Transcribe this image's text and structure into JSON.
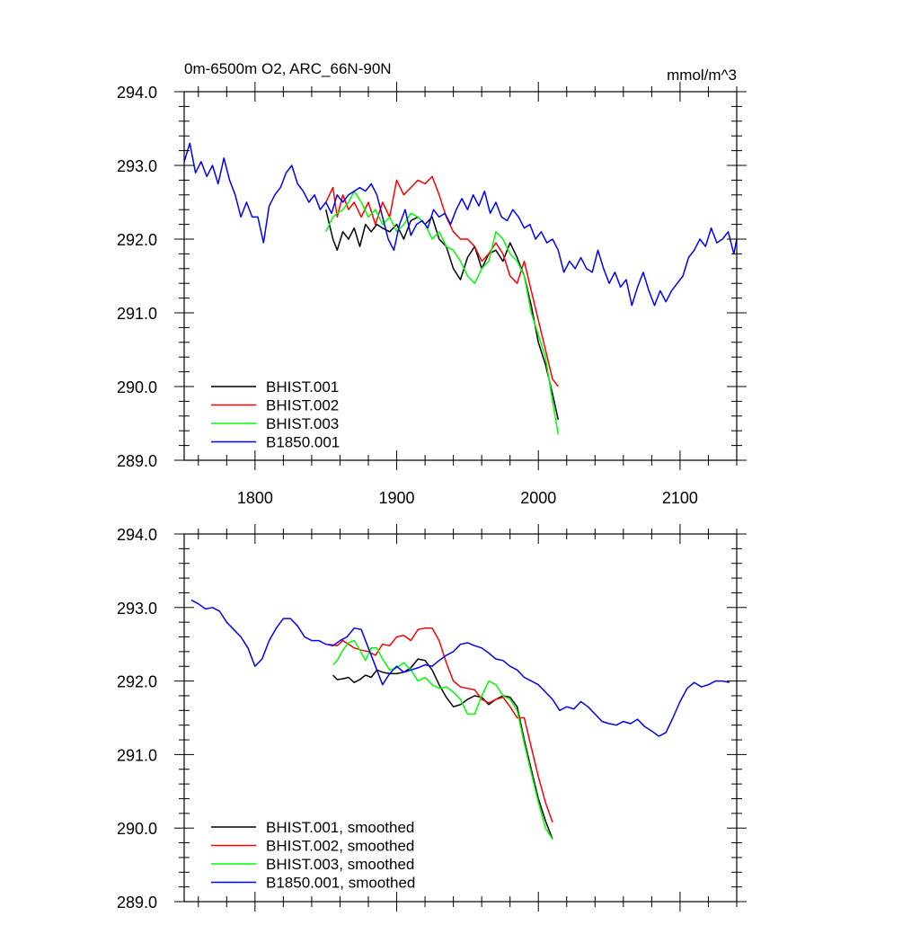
{
  "chart_data": [
    {
      "type": "line",
      "title_left": "0m-6500m O2, ARC_66N-90N",
      "title_right": "mmol/m^3",
      "xlabel": "",
      "ylabel": "",
      "xlim": [
        1750,
        2140
      ],
      "ylim": [
        289.0,
        294.0
      ],
      "x_ticks": [
        1800,
        1900,
        2000,
        2100
      ],
      "x_tick_labels": [
        "1800",
        "1900",
        "2000",
        "2100"
      ],
      "y_ticks": [
        289.0,
        290.0,
        291.0,
        292.0,
        293.0,
        294.0
      ],
      "y_tick_labels": [
        "289.0",
        "290.0",
        "291.0",
        "292.0",
        "293.0",
        "294.0"
      ],
      "grid": false,
      "legend_position": "bottom-left",
      "series": [
        {
          "name": "BHIST.001",
          "color": "#000000",
          "x": [
            1850,
            1855,
            1858,
            1862,
            1866,
            1870,
            1874,
            1878,
            1882,
            1886,
            1890,
            1895,
            1900,
            1905,
            1910,
            1915,
            1920,
            1925,
            1930,
            1935,
            1940,
            1945,
            1950,
            1955,
            1960,
            1965,
            1970,
            1975,
            1980,
            1985,
            1990,
            1995,
            2000,
            2005,
            2010,
            2014
          ],
          "values": [
            292.4,
            292.0,
            291.85,
            292.1,
            292.0,
            292.15,
            291.9,
            292.2,
            292.1,
            292.2,
            292.15,
            292.1,
            292.2,
            292.0,
            292.25,
            292.3,
            292.2,
            292.3,
            292.0,
            291.9,
            291.6,
            291.45,
            291.75,
            291.9,
            291.6,
            291.8,
            291.85,
            291.7,
            291.95,
            291.75,
            291.5,
            291.1,
            290.6,
            290.3,
            289.9,
            289.55
          ]
        },
        {
          "name": "BHIST.002",
          "color": "#ff0000",
          "x": [
            1850,
            1855,
            1858,
            1862,
            1866,
            1870,
            1875,
            1880,
            1885,
            1890,
            1895,
            1900,
            1905,
            1910,
            1915,
            1920,
            1925,
            1930,
            1935,
            1940,
            1945,
            1950,
            1955,
            1960,
            1965,
            1970,
            1975,
            1980,
            1985,
            1990,
            1995,
            2000,
            2005,
            2010,
            2014
          ],
          "values": [
            292.5,
            292.7,
            292.3,
            292.6,
            292.4,
            292.5,
            292.3,
            292.5,
            292.2,
            292.5,
            292.3,
            292.8,
            292.6,
            292.7,
            292.8,
            292.75,
            292.85,
            292.6,
            292.3,
            292.1,
            292.0,
            292.0,
            291.9,
            291.7,
            291.8,
            291.95,
            291.8,
            291.5,
            291.4,
            291.7,
            291.3,
            290.9,
            290.5,
            290.1,
            290.0
          ]
        },
        {
          "name": "BHIST.003",
          "color": "#00ff00",
          "x": [
            1850,
            1855,
            1858,
            1862,
            1866,
            1870,
            1875,
            1880,
            1885,
            1890,
            1895,
            1900,
            1905,
            1910,
            1915,
            1920,
            1925,
            1930,
            1935,
            1940,
            1945,
            1950,
            1955,
            1960,
            1965,
            1970,
            1975,
            1980,
            1985,
            1990,
            1995,
            2000,
            2005,
            2010,
            2014
          ],
          "values": [
            292.1,
            292.3,
            292.35,
            292.4,
            292.5,
            292.65,
            292.5,
            292.3,
            292.4,
            292.2,
            292.3,
            292.1,
            292.2,
            292.35,
            292.3,
            292.2,
            292.0,
            292.1,
            291.9,
            291.85,
            291.7,
            291.5,
            291.4,
            291.6,
            291.7,
            292.1,
            292.0,
            291.8,
            291.7,
            291.5,
            291.0,
            290.7,
            290.4,
            289.8,
            289.35
          ]
        },
        {
          "name": "B1850.001",
          "color": "#0000ff",
          "x": [
            1750,
            1754,
            1758,
            1762,
            1766,
            1770,
            1774,
            1778,
            1782,
            1786,
            1790,
            1794,
            1798,
            1802,
            1806,
            1810,
            1814,
            1818,
            1822,
            1826,
            1830,
            1834,
            1838,
            1842,
            1846,
            1850,
            1854,
            1858,
            1862,
            1866,
            1870,
            1874,
            1878,
            1882,
            1886,
            1890,
            1894,
            1898,
            1902,
            1906,
            1910,
            1914,
            1918,
            1922,
            1926,
            1930,
            1934,
            1938,
            1942,
            1946,
            1950,
            1954,
            1958,
            1962,
            1966,
            1970,
            1974,
            1978,
            1982,
            1986,
            1990,
            1994,
            1998,
            2002,
            2006,
            2010,
            2014,
            2018,
            2022,
            2026,
            2030,
            2034,
            2038,
            2042,
            2046,
            2050,
            2054,
            2058,
            2062,
            2066,
            2070,
            2074,
            2078,
            2082,
            2086,
            2090,
            2094,
            2098,
            2102,
            2106,
            2110,
            2114,
            2118,
            2122,
            2126,
            2130,
            2134,
            2138,
            2140
          ],
          "values": [
            293.05,
            293.3,
            292.9,
            293.05,
            292.85,
            293.0,
            292.75,
            293.1,
            292.8,
            292.6,
            292.3,
            292.5,
            292.3,
            292.3,
            291.95,
            292.45,
            292.6,
            292.7,
            292.9,
            293.0,
            292.75,
            292.65,
            292.5,
            292.6,
            292.4,
            292.5,
            292.35,
            292.6,
            292.5,
            292.6,
            292.65,
            292.7,
            292.65,
            292.75,
            292.6,
            292.3,
            292.0,
            291.85,
            292.2,
            292.4,
            292.05,
            292.2,
            292.25,
            292.15,
            292.4,
            292.3,
            292.35,
            292.2,
            292.4,
            292.55,
            292.4,
            292.6,
            292.45,
            292.65,
            292.35,
            292.5,
            292.3,
            292.25,
            292.4,
            292.3,
            292.15,
            292.2,
            292.0,
            292.1,
            291.95,
            292.0,
            291.85,
            291.55,
            291.7,
            291.6,
            291.75,
            291.6,
            291.55,
            291.85,
            291.6,
            291.4,
            291.55,
            291.35,
            291.45,
            291.1,
            291.35,
            291.55,
            291.3,
            291.1,
            291.3,
            291.15,
            291.3,
            291.4,
            291.5,
            291.75,
            291.85,
            292.0,
            291.9,
            292.15,
            291.95,
            292.0,
            292.1,
            291.8,
            292.0
          ]
        }
      ]
    },
    {
      "type": "line",
      "title_left": "",
      "title_right": "",
      "xlabel": "",
      "ylabel": "",
      "xlim": [
        1750,
        2140
      ],
      "ylim": [
        289.0,
        294.0
      ],
      "x_ticks": [
        1800,
        1900,
        2000,
        2100
      ],
      "x_tick_labels": [],
      "y_ticks": [
        289.0,
        290.0,
        291.0,
        292.0,
        293.0,
        294.0
      ],
      "y_tick_labels": [
        "289.0",
        "290.0",
        "291.0",
        "292.0",
        "293.0",
        "294.0"
      ],
      "grid": false,
      "legend_position": "bottom-left",
      "series": [
        {
          "name": "BHIST.001, smoothed",
          "color": "#000000",
          "x": [
            1855,
            1858,
            1862,
            1866,
            1870,
            1874,
            1878,
            1882,
            1886,
            1890,
            1895,
            1900,
            1905,
            1910,
            1915,
            1920,
            1925,
            1930,
            1935,
            1940,
            1945,
            1950,
            1955,
            1960,
            1965,
            1970,
            1975,
            1980,
            1985,
            1990,
            1995,
            2000,
            2005,
            2010
          ],
          "values": [
            292.08,
            292.02,
            292.03,
            292.05,
            291.98,
            292.02,
            292.08,
            292.05,
            292.15,
            292.12,
            292.1,
            292.1,
            292.12,
            292.18,
            292.3,
            292.28,
            292.15,
            291.95,
            291.78,
            291.65,
            291.68,
            291.75,
            291.8,
            291.78,
            291.68,
            291.75,
            291.8,
            291.78,
            291.65,
            291.2,
            290.8,
            290.4,
            290.1,
            289.85
          ]
        },
        {
          "name": "BHIST.002, smoothed",
          "color": "#ff0000",
          "x": [
            1852,
            1858,
            1862,
            1866,
            1870,
            1875,
            1880,
            1885,
            1890,
            1895,
            1900,
            1905,
            1910,
            1915,
            1920,
            1925,
            1930,
            1935,
            1940,
            1945,
            1950,
            1955,
            1960,
            1965,
            1970,
            1975,
            1980,
            1985,
            1990,
            1995,
            2000,
            2005,
            2010
          ],
          "values": [
            292.5,
            292.48,
            292.55,
            292.5,
            292.45,
            292.42,
            292.4,
            292.35,
            292.5,
            292.48,
            292.6,
            292.62,
            292.55,
            292.7,
            292.72,
            292.72,
            292.55,
            292.25,
            292.0,
            291.92,
            291.9,
            291.88,
            291.75,
            291.7,
            291.75,
            291.78,
            291.65,
            291.5,
            291.5,
            291.1,
            290.7,
            290.35,
            290.08
          ]
        },
        {
          "name": "BHIST.003, smoothed",
          "color": "#00ff00",
          "x": [
            1855,
            1858,
            1862,
            1866,
            1870,
            1874,
            1878,
            1882,
            1886,
            1890,
            1895,
            1900,
            1905,
            1910,
            1915,
            1920,
            1925,
            1930,
            1935,
            1940,
            1945,
            1950,
            1955,
            1960,
            1965,
            1970,
            1975,
            1980,
            1985,
            1990,
            1995,
            2000,
            2005,
            2010
          ],
          "values": [
            292.22,
            292.28,
            292.42,
            292.52,
            292.55,
            292.42,
            292.28,
            292.45,
            292.45,
            292.3,
            292.15,
            292.18,
            292.25,
            292.15,
            292.0,
            292.05,
            291.95,
            291.9,
            291.92,
            291.85,
            291.75,
            291.55,
            291.55,
            291.8,
            292.0,
            291.95,
            291.8,
            291.75,
            291.6,
            291.15,
            290.75,
            290.35,
            290.0,
            289.85
          ]
        },
        {
          "name": "B1850.001, smoothed",
          "color": "#0000ff",
          "x": [
            1755,
            1760,
            1765,
            1770,
            1775,
            1780,
            1785,
            1790,
            1795,
            1800,
            1805,
            1810,
            1815,
            1820,
            1825,
            1830,
            1835,
            1840,
            1845,
            1850,
            1855,
            1860,
            1865,
            1870,
            1875,
            1880,
            1885,
            1890,
            1895,
            1900,
            1905,
            1910,
            1915,
            1920,
            1925,
            1930,
            1935,
            1940,
            1945,
            1950,
            1955,
            1960,
            1965,
            1970,
            1975,
            1980,
            1985,
            1990,
            1995,
            2000,
            2005,
            2010,
            2015,
            2020,
            2025,
            2030,
            2035,
            2040,
            2045,
            2050,
            2055,
            2060,
            2065,
            2070,
            2075,
            2080,
            2085,
            2090,
            2095,
            2100,
            2105,
            2110,
            2115,
            2120,
            2125,
            2130,
            2135
          ],
          "values": [
            293.1,
            293.05,
            292.98,
            293.0,
            292.95,
            292.8,
            292.7,
            292.6,
            292.45,
            292.2,
            292.3,
            292.55,
            292.72,
            292.85,
            292.85,
            292.75,
            292.6,
            292.55,
            292.55,
            292.5,
            292.48,
            292.55,
            292.6,
            292.72,
            292.7,
            292.45,
            292.2,
            291.95,
            292.1,
            292.2,
            292.12,
            292.15,
            292.18,
            292.22,
            292.2,
            292.28,
            292.35,
            292.4,
            292.5,
            292.52,
            292.48,
            292.45,
            292.38,
            292.3,
            292.28,
            292.2,
            292.15,
            292.05,
            292.0,
            291.95,
            291.85,
            291.75,
            291.6,
            291.65,
            291.62,
            291.72,
            291.65,
            291.55,
            291.45,
            291.42,
            291.4,
            291.45,
            291.42,
            291.48,
            291.38,
            291.32,
            291.25,
            291.3,
            291.5,
            291.72,
            291.9,
            291.98,
            291.92,
            291.95,
            292.0,
            292.0,
            291.98
          ]
        }
      ]
    }
  ]
}
